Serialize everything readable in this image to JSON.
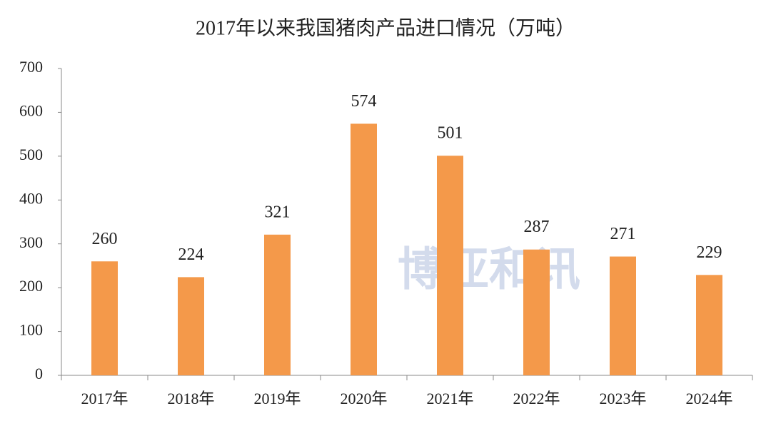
{
  "chart_data": {
    "type": "bar",
    "title": "2017年以来我国猪肉产品进口情况（万吨）",
    "categories": [
      "2017年",
      "2018年",
      "2019年",
      "2020年",
      "2021年",
      "2022年",
      "2023年",
      "2024年"
    ],
    "values": [
      260,
      224,
      321,
      574,
      501,
      287,
      271,
      229
    ],
    "color": "#f4994a",
    "ylim": [
      0,
      700
    ],
    "yticks": [
      0,
      100,
      200,
      300,
      400,
      500,
      600,
      700
    ],
    "grid": false,
    "watermark": "博亚和讯"
  }
}
